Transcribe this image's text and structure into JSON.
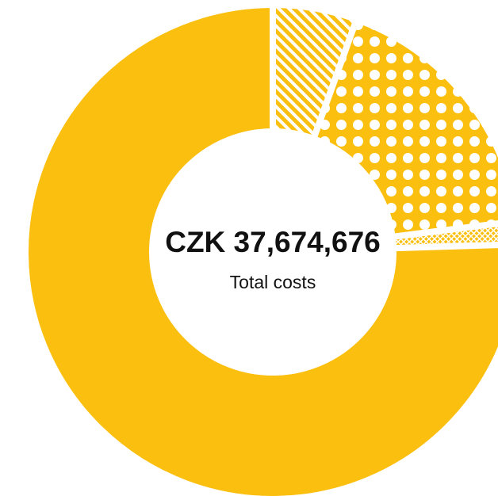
{
  "chart_data": {
    "type": "donut",
    "categories": [
      null,
      null,
      null,
      null
    ],
    "values": [
      5.5,
      17.5,
      1.5,
      75.5
    ],
    "color": "#fbbf0f",
    "patterns": [
      "diagonal",
      "dots",
      "crosshatch",
      "solid"
    ],
    "center_label": "CZK 37,674,676",
    "center_sublabel": "Total costs"
  }
}
